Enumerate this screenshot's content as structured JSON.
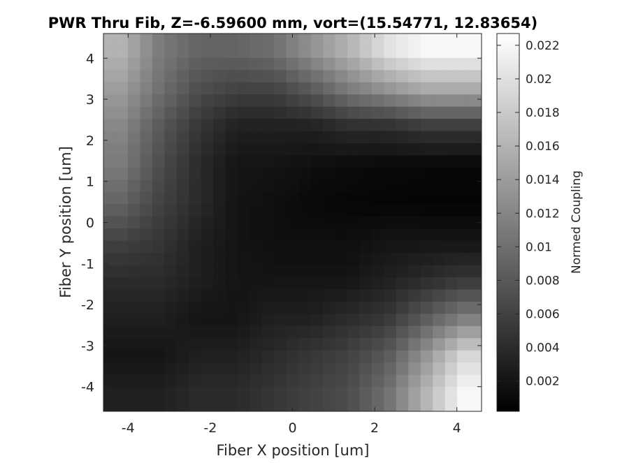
{
  "chart_data": {
    "type": "heatmap",
    "title": "PWR Thru Fib, Z=-6.59600 mm, vort=(15.54771, 12.83654)",
    "xlabel": "Fiber X position [um]",
    "ylabel": "Fiber Y position [um]",
    "xlim": [
      -4.6,
      4.6
    ],
    "ylim": [
      -4.6,
      4.6
    ],
    "x_ticks": [
      -4,
      -2,
      0,
      2,
      4
    ],
    "y_ticks": [
      -4,
      -3,
      -2,
      -1,
      0,
      1,
      2,
      3,
      4
    ],
    "x_tick_labels": [
      "-4",
      "-2",
      "0",
      "2",
      "4"
    ],
    "y_tick_labels": [
      "-4",
      "-3",
      "-2",
      "-1",
      "0",
      "1",
      "2",
      "3",
      "4"
    ],
    "grid": false,
    "colormap": "gray",
    "colorbar": {
      "label": "Normed Coupling",
      "clim": [
        0.0002,
        0.0227
      ],
      "ticks": [
        0.002,
        0.004,
        0.006,
        0.008,
        0.01,
        0.012,
        0.014,
        0.016,
        0.018,
        0.02,
        0.022
      ],
      "tick_labels": [
        "0.002",
        "0.004",
        "0.006",
        "0.008",
        "0.01",
        "0.012",
        "0.014",
        "0.016",
        "0.018",
        "0.02",
        "0.022"
      ]
    },
    "x_centers": [
      -4.5,
      -3.5,
      -2.5,
      -1.5,
      -0.5,
      0.5,
      1.5,
      2.5,
      3.5,
      4.5
    ],
    "y_centers": [
      4.5,
      3.5,
      2.5,
      1.5,
      0.5,
      -0.5,
      -1.5,
      -2.5,
      -3.5,
      -4.5
    ],
    "z_rows_top_to_bottom": [
      [
        0.016,
        0.011,
        0.009,
        0.009,
        0.01,
        0.013,
        0.016,
        0.02,
        0.022,
        0.022
      ],
      [
        0.014,
        0.01,
        0.007,
        0.006,
        0.006,
        0.008,
        0.011,
        0.013,
        0.015,
        0.015
      ],
      [
        0.012,
        0.008,
        0.005,
        0.003,
        0.003,
        0.003,
        0.004,
        0.004,
        0.005,
        0.005
      ],
      [
        0.011,
        0.007,
        0.004,
        0.002,
        0.002,
        0.0015,
        0.0012,
        0.001,
        0.0009,
        0.0008
      ],
      [
        0.009,
        0.006,
        0.004,
        0.002,
        0.0015,
        0.001,
        0.0008,
        0.0007,
        0.0006,
        0.0006
      ],
      [
        0.006,
        0.005,
        0.003,
        0.002,
        0.0015,
        0.0015,
        0.0015,
        0.002,
        0.002,
        0.002
      ],
      [
        0.004,
        0.004,
        0.003,
        0.002,
        0.002,
        0.002,
        0.002,
        0.003,
        0.004,
        0.005
      ],
      [
        0.003,
        0.003,
        0.002,
        0.002,
        0.003,
        0.003,
        0.004,
        0.005,
        0.008,
        0.011
      ],
      [
        0.002,
        0.002,
        0.003,
        0.003,
        0.004,
        0.005,
        0.006,
        0.008,
        0.013,
        0.019
      ],
      [
        0.003,
        0.003,
        0.004,
        0.004,
        0.005,
        0.006,
        0.007,
        0.01,
        0.016,
        0.022
      ]
    ]
  }
}
